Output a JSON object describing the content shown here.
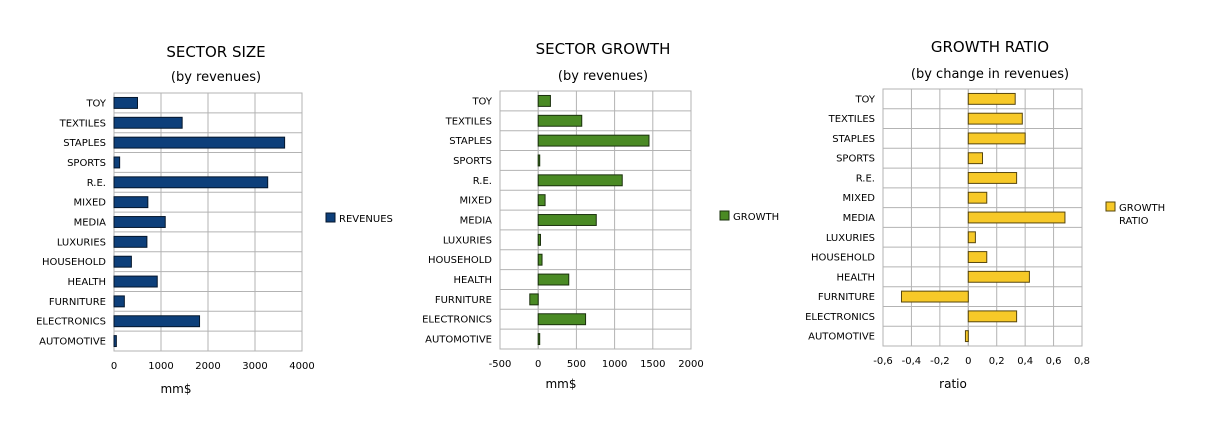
{
  "chart_data": [
    {
      "type": "bar",
      "orientation": "horizontal",
      "title": "SECTOR SIZE",
      "subtitle": "(by revenues)",
      "xlabel": "mm$",
      "categories": [
        "TOY",
        "TEXTILES",
        "STAPLES",
        "SPORTS",
        "R.E.",
        "MIXED",
        "MEDIA",
        "LUXURIES",
        "HOUSEHOLD",
        "HEALTH",
        "FURNITURE",
        "ELECTRONICS",
        "AUTOMOTIVE"
      ],
      "series": [
        {
          "name": "REVENUES",
          "color": "#0d3f7a",
          "values": [
            500,
            1450,
            3630,
            120,
            3270,
            720,
            1090,
            700,
            370,
            920,
            220,
            1820,
            50
          ]
        }
      ],
      "xlim": [
        0,
        4000
      ],
      "xticks": [
        "0",
        "1000",
        "2000",
        "3000",
        "4000"
      ],
      "xtick_values": [
        0,
        1000,
        2000,
        3000,
        4000
      ],
      "grid": true,
      "legend_position": "right"
    },
    {
      "type": "bar",
      "orientation": "horizontal",
      "title": "SECTOR GROWTH",
      "subtitle": "(by revenues)",
      "xlabel": "mm$",
      "categories": [
        "TOY",
        "TEXTILES",
        "STAPLES",
        "SPORTS",
        "R.E.",
        "MIXED",
        "MEDIA",
        "LUXURIES",
        "HOUSEHOLD",
        "HEALTH",
        "FURNITURE",
        "ELECTRONICS",
        "AUTOMOTIVE"
      ],
      "series": [
        {
          "name": "GROWTH",
          "color": "#4a8a24",
          "values": [
            160,
            570,
            1450,
            20,
            1100,
            90,
            760,
            30,
            50,
            400,
            -110,
            620,
            10
          ]
        }
      ],
      "xlim": [
        -500,
        2000
      ],
      "xticks": [
        "-500",
        "0",
        "500",
        "1000",
        "1500",
        "2000"
      ],
      "xtick_values": [
        -500,
        0,
        500,
        1000,
        1500,
        2000
      ],
      "grid": true,
      "legend_position": "right"
    },
    {
      "type": "bar",
      "orientation": "horizontal",
      "title": "GROWTH RATIO",
      "subtitle": "(by change in revenues)",
      "xlabel": "ratio",
      "categories": [
        "TOY",
        "TEXTILES",
        "STAPLES",
        "SPORTS",
        "R.E.",
        "MIXED",
        "MEDIA",
        "LUXURIES",
        "HOUSEHOLD",
        "HEALTH",
        "FURNITURE",
        "ELECTRONICS",
        "AUTOMOTIVE"
      ],
      "series": [
        {
          "name": "GROWTH RATIO",
          "legend_lines": [
            "GROWTH",
            "RATIO"
          ],
          "color": "#f7c928",
          "values": [
            0.33,
            0.38,
            0.4,
            0.1,
            0.34,
            0.13,
            0.68,
            0.05,
            0.13,
            0.43,
            -0.47,
            0.34,
            -0.02
          ]
        }
      ],
      "xlim": [
        -0.6,
        0.8
      ],
      "xticks": [
        "-0,6",
        "-0,4",
        "-0,2",
        "0",
        "0,2",
        "0,4",
        "0,6",
        "0,8"
      ],
      "xtick_values": [
        -0.6,
        -0.4,
        -0.2,
        0,
        0.2,
        0.4,
        0.6,
        0.8
      ],
      "grid": true,
      "legend_position": "right"
    }
  ]
}
